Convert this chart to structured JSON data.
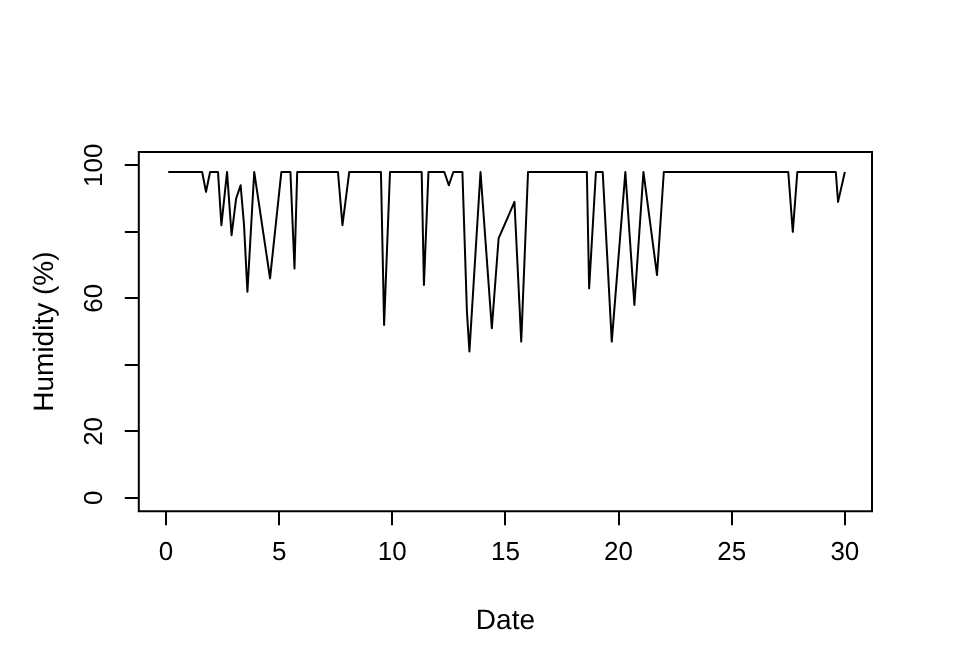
{
  "chart_data": {
    "type": "line",
    "xlabel": "Date",
    "ylabel": "Humidity (%)",
    "xlim": [
      -1.2,
      31.2
    ],
    "ylim": [
      -4,
      104
    ],
    "xticks": [
      0,
      5,
      10,
      15,
      20,
      25,
      30
    ],
    "yticks": [
      0,
      20,
      {
        "value": 40,
        "label": null
      },
      60,
      {
        "value": 80,
        "label": null
      },
      100
    ],
    "grid": false,
    "legend": false,
    "marker": "none",
    "line_style": "solid",
    "series": [
      {
        "color": "#000000",
        "x": [
          0.1,
          1.6,
          1.77,
          1.95,
          2.3,
          2.45,
          2.7,
          2.9,
          3.1,
          3.3,
          3.45,
          3.6,
          3.9,
          4.6,
          5.1,
          5.5,
          5.68,
          5.8,
          7.6,
          7.8,
          8.1,
          9.5,
          9.64,
          9.9,
          11.3,
          11.4,
          11.6,
          12.3,
          12.5,
          12.7,
          13.1,
          13.3,
          13.41,
          13.9,
          14.4,
          14.7,
          15.4,
          15.7,
          16.0,
          18.6,
          18.7,
          19.0,
          19.3,
          19.7,
          20.3,
          20.7,
          21.1,
          21.7,
          22.0,
          27.5,
          27.7,
          27.9,
          29.6,
          29.7,
          30.0
        ],
        "values": [
          98,
          98,
          92,
          98,
          98,
          82,
          98,
          79,
          90,
          94,
          82,
          62,
          98,
          66,
          98,
          98,
          69,
          98,
          98,
          82,
          98,
          98,
          52,
          98,
          98,
          64,
          98,
          98,
          94,
          98,
          98,
          56,
          44,
          98,
          51,
          78,
          89,
          47,
          98,
          98,
          63,
          98,
          98,
          47,
          98,
          58,
          98,
          67,
          98,
          98,
          80,
          98,
          98,
          89,
          98
        ]
      }
    ]
  }
}
